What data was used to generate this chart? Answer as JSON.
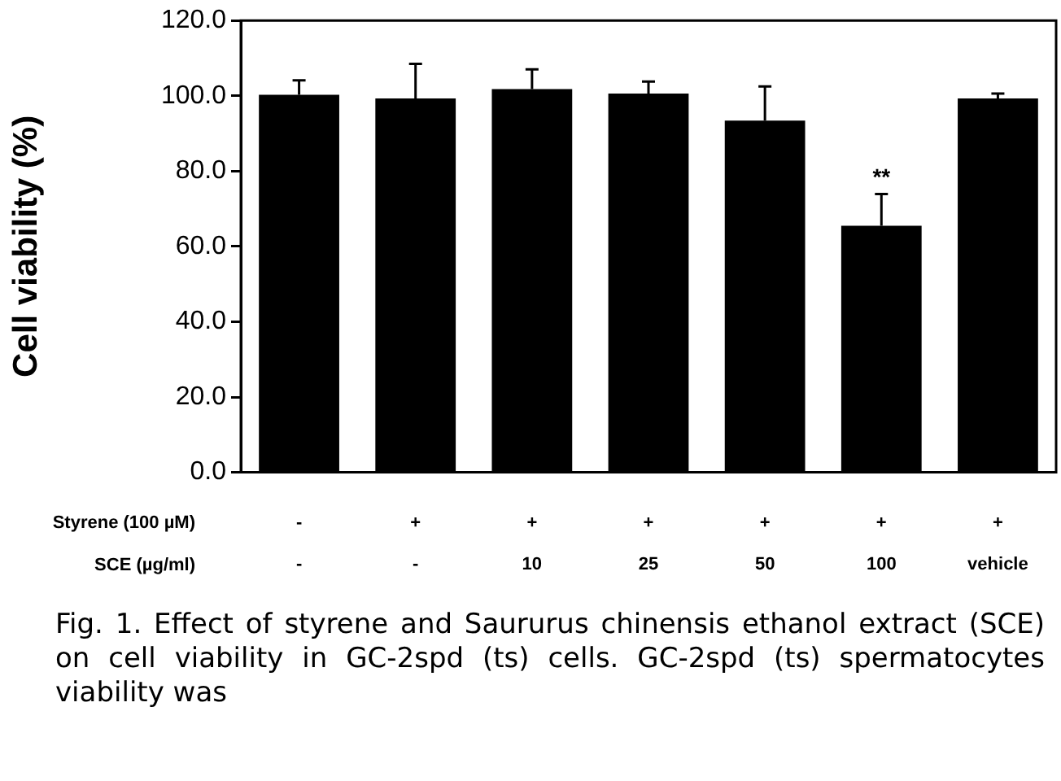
{
  "chart_data": {
    "type": "bar",
    "ylabel": "Cell viability (%)",
    "categories": [
      "-\n-",
      "+\n-",
      "+\n10",
      "+\n25",
      "+\n50",
      "+\n100",
      "+\nvehicle"
    ],
    "values": [
      100.3,
      99.3,
      101.8,
      100.6,
      93.4,
      65.5,
      99.3
    ],
    "errors": [
      3.8,
      9.2,
      5.2,
      3.2,
      9.1,
      8.4,
      1.3
    ],
    "color": "#000000",
    "ylim": [
      0,
      120
    ],
    "yticks": [
      {
        "value": 0,
        "label": "0.0"
      },
      {
        "value": 20,
        "label": "20.0"
      },
      {
        "value": 40,
        "label": "40.0"
      },
      {
        "value": 60,
        "label": "60.0"
      },
      {
        "value": 80,
        "label": "80.0"
      },
      {
        "value": 100,
        "label": "100.0"
      },
      {
        "value": 120,
        "label": "120.0"
      }
    ],
    "annotations": [
      {
        "text": "**",
        "x": "+\n100",
        "y": 75
      },
      "Styrene (100 µM)",
      "SCE (µg/ml)",
      "Fig. 1. Effect of styrene and Saururus chinensis ethanol extract (SCE) on cell viability in GC-2spd (ts) cells. GC-2spd (ts) spermatocytes viability was"
    ]
  }
}
